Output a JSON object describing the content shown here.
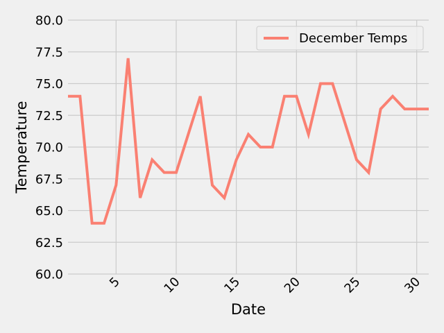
{
  "chart_data": {
    "type": "line",
    "title": "",
    "xlabel": "Date",
    "ylabel": "Temperature",
    "xlim": [
      1,
      31
    ],
    "ylim": [
      60.0,
      80.0
    ],
    "x_ticks": [
      5,
      10,
      15,
      20,
      25,
      30
    ],
    "x_tick_labels": [
      "5",
      "10",
      "15",
      "20",
      "25",
      "30"
    ],
    "y_ticks": [
      60.0,
      62.5,
      65.0,
      67.5,
      70.0,
      72.5,
      75.0,
      77.5,
      80.0
    ],
    "y_tick_labels": [
      "60.0",
      "62.5",
      "65.0",
      "67.5",
      "70.0",
      "72.5",
      "75.0",
      "77.5",
      "80.0"
    ],
    "grid": true,
    "legend_position": "top-right",
    "series": [
      {
        "name": "December Temps",
        "color": "#fa8072",
        "x": [
          1,
          2,
          3,
          4,
          5,
          6,
          7,
          8,
          9,
          10,
          11,
          12,
          13,
          14,
          15,
          16,
          17,
          18,
          19,
          20,
          21,
          22,
          23,
          24,
          25,
          26,
          27,
          28,
          29,
          30,
          31
        ],
        "y": [
          74,
          74,
          64,
          64,
          67,
          77,
          66,
          69,
          68,
          68,
          71,
          74,
          67,
          66,
          69,
          71,
          70,
          70,
          74,
          74,
          71,
          75,
          75,
          72,
          69,
          68,
          73,
          74,
          73,
          73,
          73
        ]
      }
    ]
  }
}
